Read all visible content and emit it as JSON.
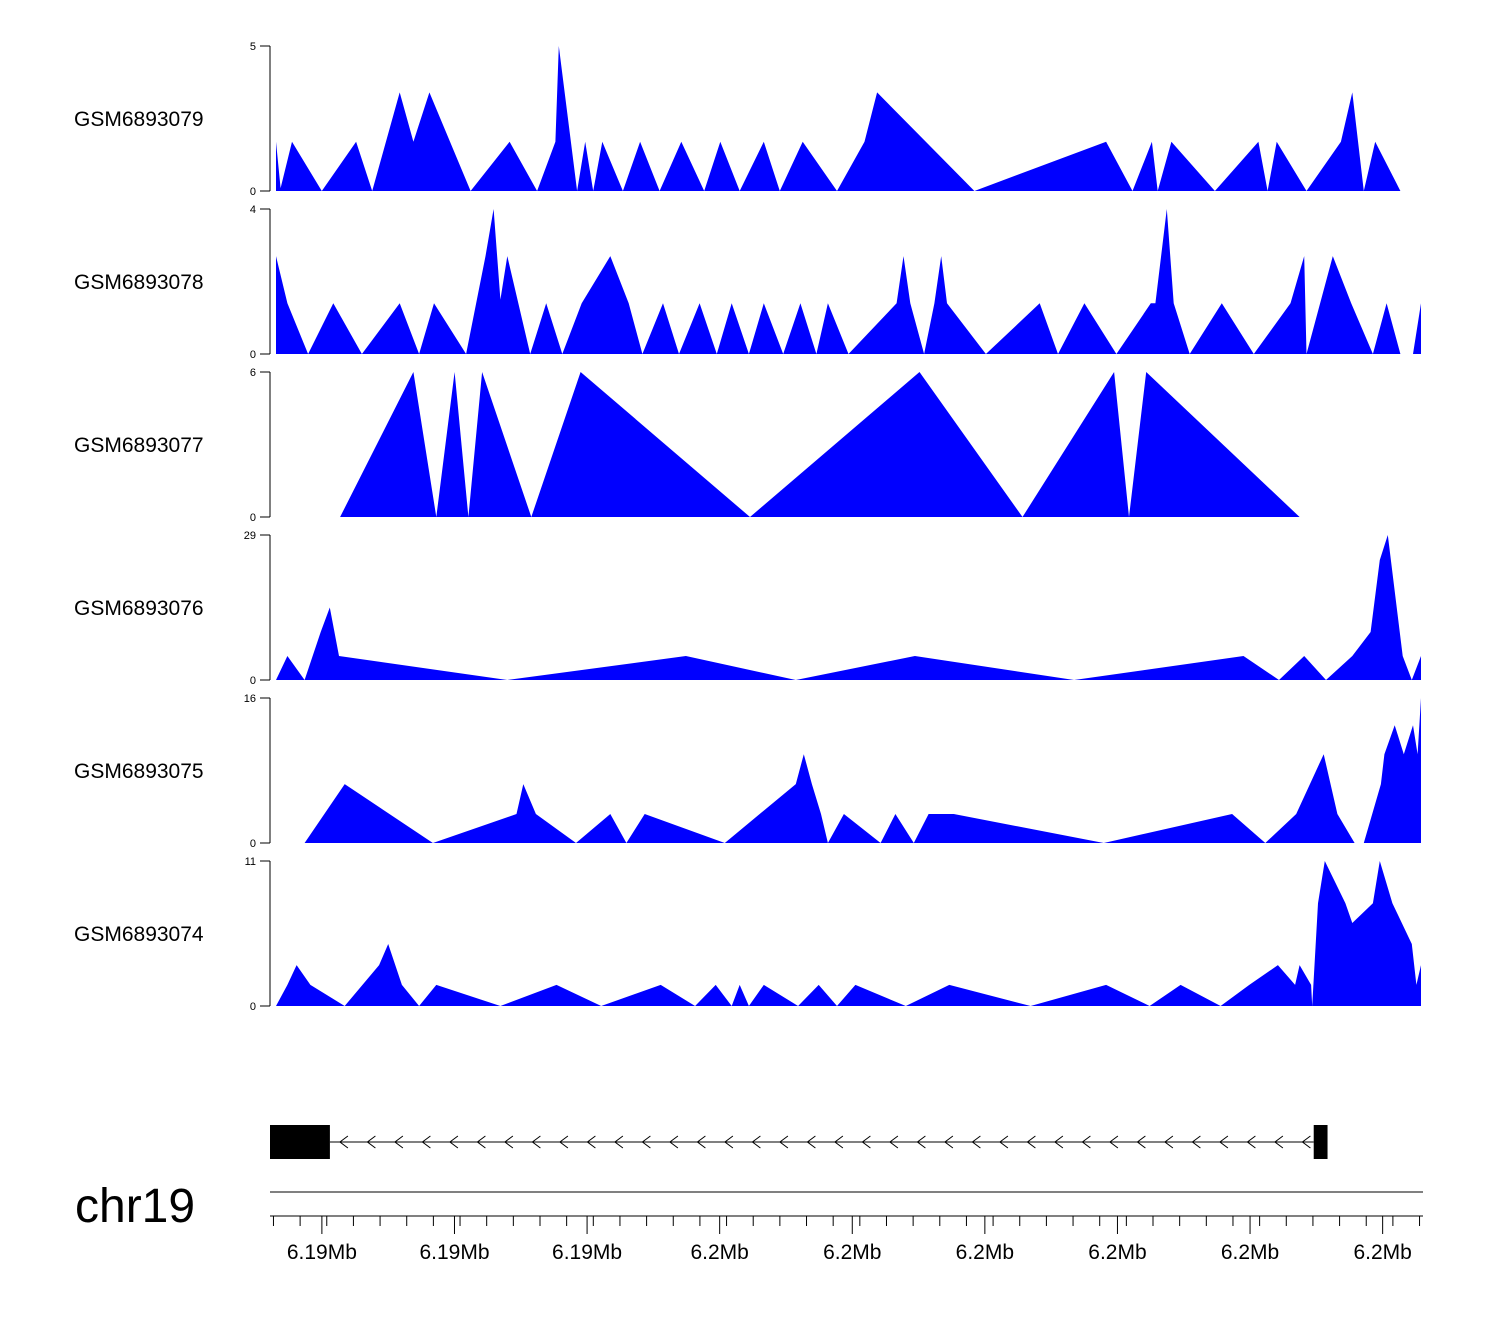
{
  "chart_data": {
    "type": "area",
    "chromosome": "chr19",
    "xlim_index": [
      0,
      100
    ],
    "fill_color": "#0000ff",
    "tracks": [
      {
        "name": "GSM6893079",
        "ymax": 5,
        "ytick_labels": [
          "0",
          "5"
        ],
        "points": [
          [
            0,
            1.7
          ],
          [
            0.4,
            0.1
          ],
          [
            1.4,
            1.7
          ],
          [
            4,
            0
          ],
          [
            7,
            1.7
          ],
          [
            8.4,
            0
          ],
          [
            10.8,
            3.4
          ],
          [
            12,
            1.7
          ],
          [
            13.4,
            3.4
          ],
          [
            17,
            0
          ],
          [
            20.4,
            1.7
          ],
          [
            22.8,
            0
          ],
          [
            24.4,
            1.7
          ],
          [
            24.7,
            5
          ],
          [
            26.3,
            0
          ],
          [
            27,
            1.7
          ],
          [
            27.7,
            0
          ],
          [
            28.5,
            1.7
          ],
          [
            30.3,
            0
          ],
          [
            31.8,
            1.7
          ],
          [
            33.5,
            0
          ],
          [
            35.4,
            1.7
          ],
          [
            37.4,
            0
          ],
          [
            38.8,
            1.7
          ],
          [
            40.5,
            0
          ],
          [
            42.6,
            1.7
          ],
          [
            44,
            0
          ],
          [
            46,
            1.7
          ],
          [
            49,
            0
          ],
          [
            51.4,
            1.7
          ],
          [
            52.5,
            3.4
          ],
          [
            61,
            0
          ],
          [
            72.5,
            1.7
          ],
          [
            74.8,
            0
          ],
          [
            76.5,
            1.7
          ],
          [
            77,
            0
          ],
          [
            78.2,
            1.7
          ],
          [
            82,
            0
          ],
          [
            85.8,
            1.7
          ],
          [
            86.6,
            0
          ],
          [
            87.4,
            1.7
          ],
          [
            90,
            0
          ],
          [
            93,
            1.7
          ],
          [
            94,
            3.4
          ],
          [
            95,
            0
          ],
          [
            96,
            1.7
          ],
          [
            98.2,
            0
          ]
        ]
      },
      {
        "name": "GSM6893078",
        "ymax": 4,
        "ytick_labels": [
          "0",
          "4"
        ],
        "points": [
          [
            0,
            2.7
          ],
          [
            1,
            1.4
          ],
          [
            2.8,
            0
          ],
          [
            5,
            1.4
          ],
          [
            7.5,
            0
          ],
          [
            10.8,
            1.4
          ],
          [
            12.5,
            0
          ],
          [
            13.8,
            1.4
          ],
          [
            16.6,
            0
          ],
          [
            18.3,
            2.7
          ],
          [
            19,
            4
          ],
          [
            19.6,
            1.5
          ],
          [
            20.2,
            2.7
          ],
          [
            22.2,
            0
          ],
          [
            23.6,
            1.4
          ],
          [
            25,
            0
          ],
          [
            26.7,
            1.4
          ],
          [
            29.2,
            2.7
          ],
          [
            30.8,
            1.4
          ],
          [
            32,
            0
          ],
          [
            33.8,
            1.4
          ],
          [
            35.2,
            0
          ],
          [
            37,
            1.4
          ],
          [
            38.5,
            0
          ],
          [
            39.8,
            1.4
          ],
          [
            41.3,
            0
          ],
          [
            42.6,
            1.4
          ],
          [
            44.3,
            0
          ],
          [
            45.8,
            1.4
          ],
          [
            47.2,
            0
          ],
          [
            48.2,
            1.4
          ],
          [
            50,
            0
          ],
          [
            54.2,
            1.4
          ],
          [
            54.8,
            2.7
          ],
          [
            55.4,
            1.4
          ],
          [
            56.6,
            0
          ],
          [
            57.5,
            1.4
          ],
          [
            58.1,
            2.7
          ],
          [
            58.6,
            1.4
          ],
          [
            62,
            0
          ],
          [
            66.7,
            1.4
          ],
          [
            68.3,
            0
          ],
          [
            70.6,
            1.4
          ],
          [
            73.4,
            0
          ],
          [
            76.4,
            1.4
          ],
          [
            76.8,
            1.4
          ],
          [
            77.8,
            4
          ],
          [
            78.4,
            1.4
          ],
          [
            79.8,
            0
          ],
          [
            82.6,
            1.4
          ],
          [
            85.4,
            0
          ],
          [
            88.6,
            1.4
          ],
          [
            89.8,
            2.7
          ],
          [
            90,
            0
          ],
          [
            92.3,
            2.7
          ],
          [
            93.9,
            1.4
          ],
          [
            95.8,
            0
          ],
          [
            97,
            1.4
          ],
          [
            98.2,
            0
          ],
          [
            99.3,
            0
          ],
          [
            100,
            1.4
          ],
          [
            100,
            2.7
          ]
        ]
      },
      {
        "name": "GSM6893077",
        "ymax": 6,
        "ytick_labels": [
          "0",
          "6"
        ],
        "points": [
          [
            5.6,
            0
          ],
          [
            12,
            6
          ],
          [
            14,
            0
          ],
          [
            15.6,
            6
          ],
          [
            16.8,
            0
          ],
          [
            18,
            6
          ],
          [
            22.3,
            0
          ],
          [
            26.6,
            6
          ],
          [
            41.4,
            0
          ],
          [
            56.2,
            6
          ],
          [
            65.2,
            0
          ],
          [
            73.2,
            6
          ],
          [
            74.5,
            0
          ],
          [
            76,
            6
          ],
          [
            89.4,
            0
          ]
        ]
      },
      {
        "name": "GSM6893076",
        "ymax": 29,
        "ytick_labels": [
          "0",
          "29"
        ],
        "points": [
          [
            0,
            0
          ],
          [
            1,
            4.8
          ],
          [
            2.5,
            0
          ],
          [
            3.9,
            9.6
          ],
          [
            4.7,
            14.5
          ],
          [
            5.5,
            4.8
          ],
          [
            20.2,
            0
          ],
          [
            35.8,
            4.8
          ],
          [
            45.4,
            0
          ],
          [
            55.8,
            4.8
          ],
          [
            69.7,
            0
          ],
          [
            84.5,
            4.8
          ],
          [
            87.6,
            0
          ],
          [
            89.8,
            4.8
          ],
          [
            91.7,
            0
          ],
          [
            94,
            4.8
          ],
          [
            95.6,
            9.6
          ],
          [
            96.4,
            24
          ],
          [
            97.1,
            29
          ],
          [
            98.4,
            4.8
          ],
          [
            99.2,
            0
          ],
          [
            100,
            4.8
          ]
        ]
      },
      {
        "name": "GSM6893075",
        "ymax": 16,
        "ytick_labels": [
          "0",
          "16"
        ],
        "points": [
          [
            2.5,
            0
          ],
          [
            6,
            6.5
          ],
          [
            13.7,
            0
          ],
          [
            21,
            3.2
          ],
          [
            21.6,
            6.5
          ],
          [
            22.7,
            3.2
          ],
          [
            26.2,
            0
          ],
          [
            29.2,
            3.2
          ],
          [
            30.6,
            0
          ],
          [
            32.2,
            3.2
          ],
          [
            39.2,
            0
          ],
          [
            45.4,
            6.5
          ],
          [
            46.1,
            9.8
          ],
          [
            46.8,
            6.5
          ],
          [
            47.6,
            3.2
          ],
          [
            48.2,
            0
          ],
          [
            49.6,
            3.2
          ],
          [
            52.8,
            0
          ],
          [
            54.1,
            3.2
          ],
          [
            55.7,
            0
          ],
          [
            57,
            3.2
          ],
          [
            59.2,
            3.2
          ],
          [
            72.3,
            0
          ],
          [
            83.5,
            3.2
          ],
          [
            86.4,
            0
          ],
          [
            89.1,
            3.2
          ],
          [
            91.5,
            9.8
          ],
          [
            92.7,
            3.2
          ],
          [
            94.2,
            0
          ],
          [
            95,
            0
          ],
          [
            96.5,
            6.5
          ],
          [
            96.8,
            9.8
          ],
          [
            97.7,
            13
          ],
          [
            98.5,
            9.8
          ],
          [
            99.3,
            13
          ],
          [
            99.7,
            9.8
          ],
          [
            100,
            16
          ],
          [
            100,
            13
          ]
        ]
      },
      {
        "name": "GSM6893074",
        "ymax": 11,
        "ytick_labels": [
          "0",
          "11"
        ],
        "points": [
          [
            0,
            0
          ],
          [
            1,
            1.6
          ],
          [
            1.8,
            3.1
          ],
          [
            3,
            1.6
          ],
          [
            6,
            0
          ],
          [
            9,
            3.1
          ],
          [
            9.8,
            4.7
          ],
          [
            11,
            1.6
          ],
          [
            12.5,
            0
          ],
          [
            14,
            1.6
          ],
          [
            19.6,
            0
          ],
          [
            24.5,
            1.6
          ],
          [
            28.4,
            0
          ],
          [
            33.6,
            1.6
          ],
          [
            36.6,
            0
          ],
          [
            38.4,
            1.6
          ],
          [
            39.8,
            0
          ],
          [
            40.5,
            1.6
          ],
          [
            41.3,
            0
          ],
          [
            42.6,
            1.6
          ],
          [
            45.6,
            0
          ],
          [
            47.4,
            1.6
          ],
          [
            49,
            0
          ],
          [
            50.6,
            1.6
          ],
          [
            55,
            0
          ],
          [
            58.8,
            1.6
          ],
          [
            65.9,
            0
          ],
          [
            72.5,
            1.6
          ],
          [
            76.3,
            0
          ],
          [
            79,
            1.6
          ],
          [
            82.5,
            0
          ],
          [
            85,
            1.6
          ],
          [
            87.5,
            3.1
          ],
          [
            89,
            1.6
          ],
          [
            89.4,
            3.1
          ],
          [
            90.4,
            1.6
          ],
          [
            90.5,
            0
          ],
          [
            91,
            7.8
          ],
          [
            91.6,
            11
          ],
          [
            93.4,
            7.8
          ],
          [
            94,
            6.3
          ],
          [
            95.8,
            7.8
          ],
          [
            96.4,
            11
          ],
          [
            97.5,
            7.8
          ],
          [
            99.2,
            4.7
          ],
          [
            99.6,
            1.6
          ],
          [
            100,
            3.1
          ],
          [
            100,
            1.6
          ]
        ]
      }
    ],
    "gene": {
      "strand": "-",
      "exons": [
        [
          0,
          5.2
        ],
        [
          90.6,
          91.8
        ]
      ]
    },
    "x_axis": {
      "tick_labels": [
        "6.19Mb",
        "6.19Mb",
        "6.19Mb",
        "6.2Mb",
        "6.2Mb",
        "6.2Mb",
        "6.2Mb",
        "6.2Mb",
        "6.2Mb"
      ],
      "tick_positions": [
        4.5,
        16,
        27.5,
        39,
        50.5,
        62,
        73.5,
        85,
        96.5
      ],
      "minor_tick_count": 44
    }
  }
}
